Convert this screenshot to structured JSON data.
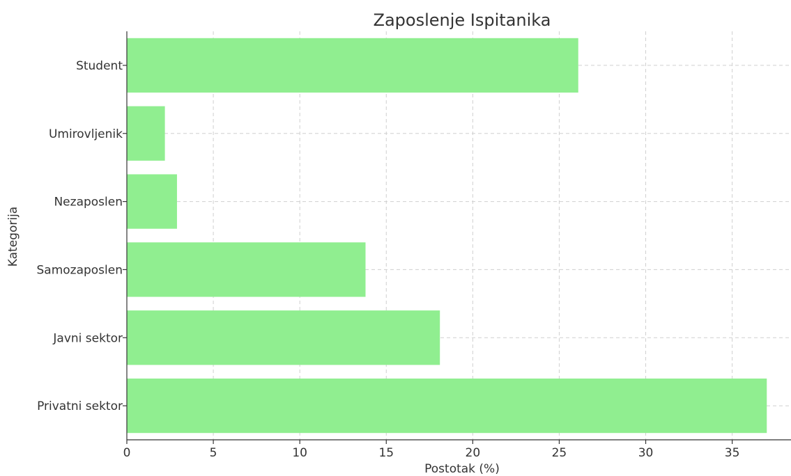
{
  "chart_data": {
    "type": "bar",
    "orientation": "horizontal",
    "title": "Zaposlenje Ispitanika",
    "xlabel": "Postotak (%)",
    "ylabel": "Kategorija",
    "categories": [
      "Privatni sektor",
      "Javni sektor",
      "Samozaposlen",
      "Nezaposlen",
      "Umirovljenik",
      "Student"
    ],
    "values": [
      37.0,
      18.1,
      13.8,
      2.9,
      2.2,
      26.1
    ],
    "xlim": [
      0,
      38.4
    ],
    "xticks": [
      0,
      5,
      10,
      15,
      20,
      25,
      30,
      35
    ],
    "grid": true,
    "bar_color": "#90ee90"
  }
}
